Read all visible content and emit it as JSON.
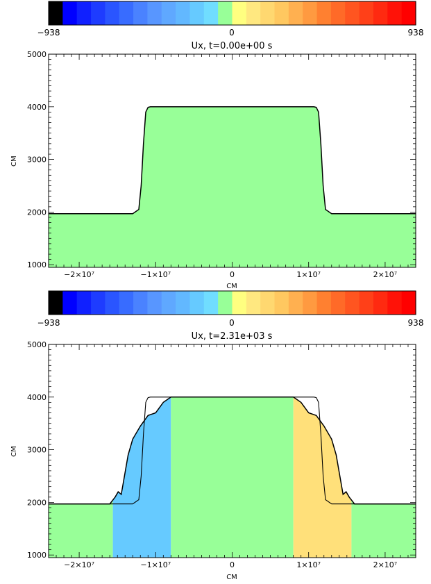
{
  "colorbar": {
    "min_label": "−938",
    "mid_label": "0",
    "max_label": "938",
    "min": -938,
    "max": 938,
    "colors": [
      "#000000",
      "#0000ff",
      "#1020ff",
      "#1e3cff",
      "#2a55ff",
      "#386cff",
      "#4a82ff",
      "#5896ff",
      "#5fa8ff",
      "#62b8ff",
      "#66caff",
      "#70ddff",
      "#98ff98",
      "#ffff80",
      "#ffe880",
      "#ffd870",
      "#ffc860",
      "#ffb050",
      "#ff9a40",
      "#ff8030",
      "#ff6a28",
      "#ff5520",
      "#ff4018",
      "#ff2a10",
      "#ff1208",
      "#ff0000"
    ]
  },
  "chart_data": [
    {
      "type": "heatmap",
      "title": "Ux, t=0.00e+00 s",
      "xlabel": "CM",
      "ylabel": "CM",
      "xlim": [
        -24000000,
        24000000
      ],
      "ylim": [
        950,
        5000
      ],
      "x_ticks": [
        {
          "value": -20000000,
          "label": "−2×10⁷"
        },
        {
          "value": -10000000,
          "label": "−1×10⁷"
        },
        {
          "value": 0,
          "label": "0"
        },
        {
          "value": 10000000,
          "label": "1×10⁷"
        },
        {
          "value": 20000000,
          "label": "2×10⁷"
        }
      ],
      "y_ticks": [
        {
          "value": 1000,
          "label": "1000"
        },
        {
          "value": 2000,
          "label": "2000"
        },
        {
          "value": 3000,
          "label": "3000"
        },
        {
          "value": 4000,
          "label": "4000"
        },
        {
          "value": 5000,
          "label": "5000"
        }
      ],
      "surface_profile": {
        "x": [
          -24000000,
          -13000000,
          -12200000,
          -11900000,
          -11600000,
          -11300000,
          -11000000,
          -10700000,
          10700000,
          11000000,
          11300000,
          11600000,
          11900000,
          12200000,
          13000000,
          24000000
        ],
        "y": [
          1970,
          1970,
          2050,
          2500,
          3300,
          3900,
          3990,
          4000,
          4000,
          3990,
          3900,
          3300,
          2500,
          2050,
          1970,
          1970
        ]
      },
      "filled_regions": [
        {
          "value": 0,
          "color": "#98ff98",
          "outline": "surface_profile"
        }
      ]
    },
    {
      "type": "heatmap",
      "title": "Ux, t=2.31e+03 s",
      "xlabel": "CM",
      "ylabel": "CM",
      "xlim": [
        -24000000,
        24000000
      ],
      "ylim": [
        950,
        5000
      ],
      "x_ticks": [
        {
          "value": -20000000,
          "label": "−2×10⁷"
        },
        {
          "value": -10000000,
          "label": "−1×10⁷"
        },
        {
          "value": 0,
          "label": "0"
        },
        {
          "value": 10000000,
          "label": "1×10⁷"
        },
        {
          "value": 20000000,
          "label": "2×10⁷"
        }
      ],
      "y_ticks": [
        {
          "value": 1000,
          "label": "1000"
        },
        {
          "value": 2000,
          "label": "2000"
        },
        {
          "value": 3000,
          "label": "3000"
        },
        {
          "value": 4000,
          "label": "4000"
        },
        {
          "value": 5000,
          "label": "5000"
        }
      ],
      "initial_profile": {
        "x": [
          -24000000,
          -13000000,
          -12200000,
          -11900000,
          -11600000,
          -11300000,
          -11000000,
          -10700000,
          10700000,
          11000000,
          11300000,
          11600000,
          11900000,
          12200000,
          13000000,
          24000000
        ],
        "y": [
          1970,
          1970,
          2050,
          2500,
          3300,
          3900,
          3990,
          4000,
          4000,
          3990,
          3900,
          3300,
          2500,
          2050,
          1970,
          1970
        ]
      },
      "surface_profile": {
        "x": [
          -24000000,
          -16000000,
          -15300000,
          -14900000,
          -14500000,
          -14200000,
          -13600000,
          -13000000,
          -12000000,
          -11000000,
          -10000000,
          -9000000,
          -8000000,
          8000000,
          9000000,
          10000000,
          11000000,
          12000000,
          13000000,
          13600000,
          14200000,
          14500000,
          14900000,
          15300000,
          16000000,
          24000000
        ],
        "y": [
          1970,
          1970,
          2100,
          2200,
          2150,
          2400,
          2900,
          3200,
          3450,
          3650,
          3700,
          3900,
          4000,
          4000,
          3900,
          3700,
          3650,
          3450,
          3200,
          2900,
          2400,
          2150,
          2200,
          2100,
          1970,
          1970
        ]
      },
      "filled_regions": [
        {
          "x_range": [
            -24000000,
            -15600000
          ],
          "value": 0,
          "color": "#98ff98"
        },
        {
          "x_range": [
            -15600000,
            -8000000
          ],
          "value": -200,
          "color": "#66caff"
        },
        {
          "x_range": [
            -8000000,
            8000000
          ],
          "value": 0,
          "color": "#98ff98"
        },
        {
          "x_range": [
            8000000,
            15600000
          ],
          "value": 150,
          "color": "#ffe07a"
        },
        {
          "x_range": [
            15600000,
            24000000
          ],
          "value": 0,
          "color": "#98ff98"
        }
      ]
    }
  ]
}
